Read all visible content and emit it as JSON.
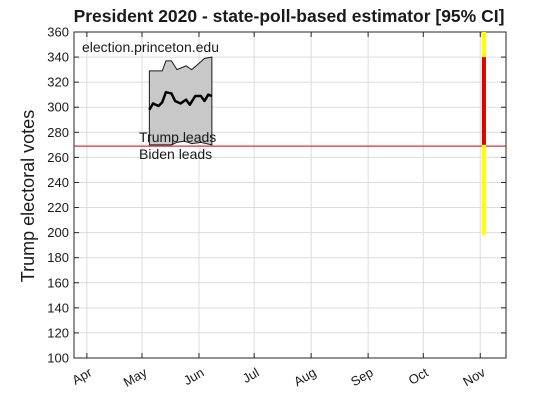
{
  "chart_data": {
    "type": "line",
    "title": "President 2020 - state-poll-based estimator [95% CI]",
    "xlabel": "",
    "ylabel": "Trump electoral votes",
    "watermark": "election.princeton.edu",
    "ylim": [
      100,
      360
    ],
    "yticks": [
      100,
      120,
      140,
      160,
      180,
      200,
      220,
      240,
      260,
      280,
      300,
      320,
      340,
      360
    ],
    "xlim": [
      "2020-03-25",
      "2020-11-15"
    ],
    "xticks": [
      {
        "label": "Apr",
        "date": "2020-04-01"
      },
      {
        "label": "May",
        "date": "2020-05-01"
      },
      {
        "label": "Jun",
        "date": "2020-06-01"
      },
      {
        "label": "Jul",
        "date": "2020-07-01"
      },
      {
        "label": "Aug",
        "date": "2020-08-01"
      },
      {
        "label": "Sep",
        "date": "2020-09-01"
      },
      {
        "label": "Oct",
        "date": "2020-10-01"
      },
      {
        "label": "Nov",
        "date": "2020-11-01"
      }
    ],
    "grid": true,
    "threshold": {
      "value": 269,
      "color": "#e03030",
      "label_above": "Trump leads",
      "label_below": "Biden leads"
    },
    "median": {
      "color": "#000000",
      "points": [
        [
          "2020-05-05",
          298
        ],
        [
          "2020-05-07",
          303
        ],
        [
          "2020-05-10",
          301
        ],
        [
          "2020-05-12",
          304
        ],
        [
          "2020-05-14",
          312
        ],
        [
          "2020-05-17",
          311
        ],
        [
          "2020-05-19",
          305
        ],
        [
          "2020-05-22",
          303
        ],
        [
          "2020-05-25",
          306
        ],
        [
          "2020-05-27",
          302
        ],
        [
          "2020-05-30",
          309
        ],
        [
          "2020-06-02",
          309
        ],
        [
          "2020-06-04",
          305
        ],
        [
          "2020-06-06",
          310
        ],
        [
          "2020-06-08",
          309
        ]
      ]
    },
    "band": {
      "fill": "#c8c8c8",
      "upper": [
        [
          "2020-05-05",
          329
        ],
        [
          "2020-05-12",
          329
        ],
        [
          "2020-05-14",
          337
        ],
        [
          "2020-05-17",
          337
        ],
        [
          "2020-05-20",
          330
        ],
        [
          "2020-05-25",
          333
        ],
        [
          "2020-05-28",
          330
        ],
        [
          "2020-06-01",
          335
        ],
        [
          "2020-06-04",
          339
        ],
        [
          "2020-06-08",
          340
        ]
      ],
      "lower": [
        [
          "2020-05-05",
          270
        ],
        [
          "2020-05-12",
          270
        ],
        [
          "2020-05-17",
          270
        ],
        [
          "2020-05-20",
          272
        ],
        [
          "2020-05-24",
          273
        ],
        [
          "2020-05-28",
          271
        ],
        [
          "2020-06-02",
          272
        ],
        [
          "2020-06-08",
          270
        ]
      ]
    },
    "election_day_bar": {
      "date": "2020-11-03",
      "outer_range": [
        198,
        360
      ],
      "outer_color": "#ffff00",
      "inner_range": [
        270,
        340
      ],
      "inner_color": "#e00000"
    }
  }
}
